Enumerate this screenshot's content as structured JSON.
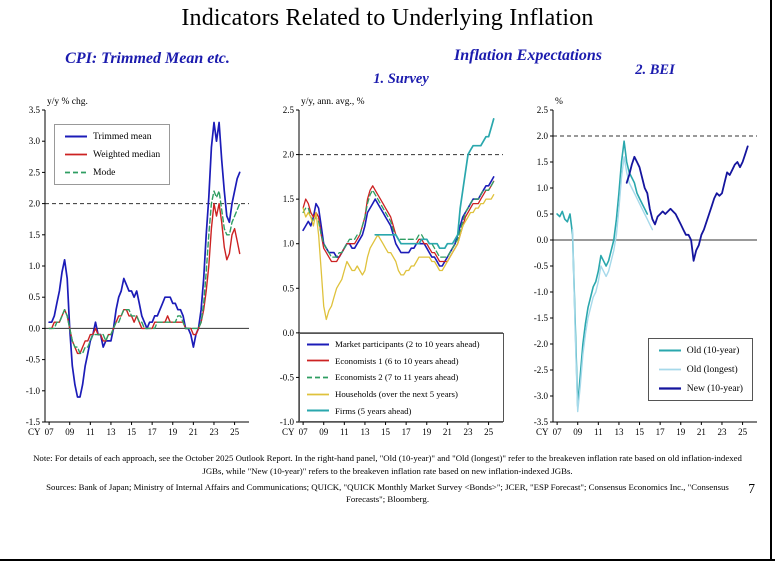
{
  "page": {
    "title": "Indicators Related to Underlying Inflation",
    "page_number": "7",
    "note": "Note: For details of each approach, see the October 2025 Outlook Report. In the right-hand panel, \"Old (10-year)\" and \"Old (longest)\" refer to the breakeven inflation rate based on old inflation-indexed JGBs, while \"New (10-year)\" refers to the breakeven inflation rate based on new inflation-indexed JGBs.",
    "sources": "Sources: Bank of Japan; Ministry of Internal Affairs and Communications; QUICK, \"QUICK Monthly Market Survey <Bonds>\"; JCER, \"ESP Forecast\"; Consensus Economics Inc., \"Consensus Forecasts\"; Bloomberg."
  },
  "headers": {
    "left_panel_title": "CPI: Trimmed Mean etc.",
    "right_group_title": "Inflation Expectations",
    "survey_subtitle": "1. Survey",
    "bei_subtitle": "2. BEI"
  },
  "colors": {
    "header_blue": "#1b1bae",
    "line_blue": "#1c1cb8",
    "line_red": "#cc2222",
    "line_green": "#2f9e62",
    "line_yellow": "#dfc23c",
    "line_teal": "#2aa7ad",
    "line_lightblue": "#a6d9ea",
    "line_navy": "#15159e"
  },
  "chart_data": [
    {
      "type": "line",
      "title": "CPI: Trimmed Mean etc.",
      "unit_label": "y/y % chg.",
      "x_prefix": "CY",
      "xlim": [
        2006.6,
        2026.4
      ],
      "ylim": [
        -1.5,
        3.5
      ],
      "ytick_step": 0.5,
      "xticks": [
        2007,
        2009,
        2011,
        2013,
        2015,
        2017,
        2019,
        2021,
        2023,
        2025
      ],
      "xtick_labels": [
        "07",
        "09",
        "11",
        "13",
        "15",
        "17",
        "19",
        "21",
        "23",
        "25"
      ],
      "refline": 2.0,
      "zero_line": true,
      "legend": {
        "pos": "top-left",
        "boxed": true
      },
      "series": [
        {
          "id": "trimmed-mean",
          "name": "Trimmed mean",
          "color": "#1c1cb8",
          "width": 1.7,
          "dash": null,
          "start": 2007.0,
          "step": 0.25,
          "values": [
            0.1,
            0.1,
            0.2,
            0.4,
            0.6,
            0.9,
            1.1,
            0.8,
            0.0,
            -0.6,
            -0.9,
            -1.1,
            -1.1,
            -0.9,
            -0.6,
            -0.4,
            -0.2,
            -0.1,
            0.1,
            -0.1,
            -0.1,
            -0.3,
            -0.2,
            -0.2,
            -0.2,
            0.0,
            0.3,
            0.5,
            0.6,
            0.8,
            0.7,
            0.6,
            0.6,
            0.5,
            0.6,
            0.4,
            0.2,
            0.1,
            0.0,
            0.1,
            0.1,
            0.2,
            0.2,
            0.3,
            0.4,
            0.5,
            0.5,
            0.5,
            0.4,
            0.4,
            0.3,
            0.3,
            0.2,
            0.0,
            0.0,
            -0.1,
            -0.3,
            -0.1,
            0.0,
            0.3,
            0.8,
            1.5,
            2.1,
            2.9,
            3.3,
            3.0,
            3.3,
            2.7,
            2.2,
            1.8,
            1.7,
            2.0,
            2.2,
            2.4,
            2.5
          ]
        },
        {
          "id": "weighted-median",
          "name": "Weighted median",
          "color": "#cc2222",
          "width": 1.4,
          "dash": null,
          "start": 2007.0,
          "step": 0.25,
          "values": [
            0.0,
            0.0,
            0.1,
            0.1,
            0.1,
            0.2,
            0.3,
            0.2,
            0.0,
            -0.2,
            -0.3,
            -0.4,
            -0.4,
            -0.3,
            -0.2,
            -0.2,
            -0.1,
            -0.1,
            0.0,
            -0.1,
            -0.1,
            -0.2,
            -0.2,
            -0.1,
            -0.1,
            0.0,
            0.1,
            0.2,
            0.2,
            0.3,
            0.3,
            0.2,
            0.2,
            0.1,
            0.2,
            0.1,
            0.0,
            0.0,
            0.0,
            0.0,
            0.0,
            0.1,
            0.1,
            0.1,
            0.1,
            0.1,
            0.2,
            0.1,
            0.1,
            0.1,
            0.1,
            0.1,
            0.1,
            0.0,
            0.0,
            0.0,
            -0.1,
            -0.1,
            0.0,
            0.1,
            0.3,
            0.6,
            1.0,
            1.6,
            2.0,
            1.8,
            2.0,
            1.7,
            1.3,
            1.1,
            1.2,
            1.5,
            1.6,
            1.4,
            1.2
          ]
        },
        {
          "id": "mode",
          "name": "Mode",
          "color": "#2f9e62",
          "width": 1.4,
          "dash": "5 3",
          "start": 2007.0,
          "step": 0.25,
          "values": [
            0.0,
            0.0,
            0.0,
            0.1,
            0.1,
            0.2,
            0.3,
            0.2,
            0.0,
            -0.2,
            -0.3,
            -0.3,
            -0.4,
            -0.4,
            -0.3,
            -0.3,
            -0.2,
            -0.1,
            -0.1,
            -0.1,
            -0.1,
            -0.1,
            -0.2,
            -0.1,
            -0.1,
            0.0,
            0.1,
            0.1,
            0.2,
            0.3,
            0.3,
            0.3,
            0.2,
            0.2,
            0.2,
            0.1,
            0.1,
            0.0,
            0.0,
            0.0,
            0.0,
            0.0,
            0.1,
            0.1,
            0.1,
            0.1,
            0.1,
            0.1,
            0.1,
            0.1,
            0.2,
            0.2,
            0.1,
            0.0,
            0.0,
            0.0,
            0.0,
            0.0,
            0.0,
            0.1,
            0.4,
            0.9,
            1.5,
            2.0,
            2.2,
            2.1,
            2.2,
            1.9,
            1.6,
            1.5,
            1.5,
            1.7,
            1.8,
            1.9,
            2.0
          ]
        }
      ]
    },
    {
      "type": "line",
      "title": "Inflation Expectations - 1. Survey",
      "unit_label": "y/y, ann. avg., %",
      "x_prefix": "CY",
      "xlim": [
        2006.6,
        2026.4
      ],
      "ylim": [
        -1.0,
        2.5
      ],
      "ytick_step": 0.5,
      "xticks": [
        2007,
        2009,
        2011,
        2013,
        2015,
        2017,
        2019,
        2021,
        2023,
        2025
      ],
      "xtick_labels": [
        "07",
        "09",
        "11",
        "13",
        "15",
        "17",
        "19",
        "21",
        "23",
        "25"
      ],
      "refline": 2.0,
      "zero_line": true,
      "legend": {
        "pos": "bottom",
        "boxed": true
      },
      "series": [
        {
          "id": "market-participants",
          "name": "Market participants (2 to 10 years ahead)",
          "color": "#1c1cb8",
          "width": 1.6,
          "dash": null,
          "start": 2007.0,
          "step": 0.25,
          "values": [
            1.15,
            1.2,
            1.25,
            1.2,
            1.3,
            1.45,
            1.4,
            1.2,
            1.0,
            0.95,
            0.9,
            0.9,
            0.9,
            0.85,
            0.85,
            0.9,
            0.95,
            1.0,
            1.0,
            0.95,
            0.95,
            1.0,
            1.05,
            1.1,
            1.2,
            1.35,
            1.4,
            1.45,
            1.5,
            1.45,
            1.4,
            1.35,
            1.3,
            1.25,
            1.2,
            1.1,
            1.0,
            0.95,
            0.9,
            0.9,
            0.9,
            0.9,
            0.95,
            0.95,
            1.0,
            1.0,
            1.0,
            1.0,
            0.95,
            0.9,
            0.85,
            0.85,
            0.8,
            0.75,
            0.75,
            0.8,
            0.85,
            0.9,
            0.95,
            1.0,
            1.1,
            1.2,
            1.3,
            1.35,
            1.4,
            1.45,
            1.5,
            1.5,
            1.5,
            1.55,
            1.6,
            1.65,
            1.65,
            1.7,
            1.75
          ]
        },
        {
          "id": "economists-1",
          "name": "Economists 1 (6 to 10 years ahead)",
          "color": "#cc2222",
          "width": 1.3,
          "dash": null,
          "start": 2007.0,
          "step": 0.25,
          "values": [
            1.4,
            1.5,
            1.45,
            1.35,
            1.3,
            1.35,
            1.3,
            1.1,
            0.95,
            0.9,
            0.85,
            0.8,
            0.8,
            0.8,
            0.85,
            0.9,
            0.95,
            1.0,
            1.0,
            1.0,
            1.0,
            1.05,
            1.1,
            1.2,
            1.3,
            1.5,
            1.6,
            1.65,
            1.6,
            1.55,
            1.5,
            1.45,
            1.4,
            1.35,
            1.3,
            1.2,
            1.1,
            1.05,
            1.0,
            1.0,
            1.0,
            1.0,
            1.0,
            1.0,
            1.0,
            1.05,
            1.05,
            1.0,
            1.0,
            0.95,
            0.9,
            0.9,
            0.85,
            0.8,
            0.8,
            0.8,
            0.8,
            0.85,
            0.9,
            0.95,
            1.0,
            1.1,
            1.2,
            1.3,
            1.35,
            1.4,
            1.45,
            1.45,
            1.45,
            1.5,
            1.55,
            1.6,
            1.6,
            1.65,
            1.7
          ]
        },
        {
          "id": "economists-2",
          "name": "Economists 2 (7 to 11 years ahead)",
          "color": "#2f9e62",
          "width": 1.3,
          "dash": "5 3",
          "start": 2007.0,
          "step": 0.25,
          "values": [
            1.35,
            1.4,
            1.4,
            1.3,
            1.25,
            1.3,
            1.25,
            1.1,
            1.0,
            0.95,
            0.9,
            0.85,
            0.85,
            0.85,
            0.9,
            0.9,
            0.95,
            1.0,
            1.05,
            1.05,
            1.05,
            1.1,
            1.1,
            1.2,
            1.3,
            1.45,
            1.55,
            1.6,
            1.55,
            1.5,
            1.45,
            1.4,
            1.35,
            1.3,
            1.25,
            1.15,
            1.1,
            1.05,
            1.05,
            1.05,
            1.05,
            1.05,
            1.05,
            1.05,
            1.05,
            1.1,
            1.1,
            1.05,
            1.05,
            1.0,
            1.0,
            0.95,
            0.9,
            0.85,
            0.85,
            0.85,
            0.85,
            0.9,
            0.95,
            1.0,
            1.05,
            1.15,
            1.25,
            1.35,
            1.4,
            1.45,
            1.5,
            1.5,
            1.5,
            1.55,
            1.6,
            1.6,
            1.6,
            1.65,
            1.7
          ]
        },
        {
          "id": "households",
          "name": "Households (over the next 5 years)",
          "color": "#dfc23c",
          "width": 1.3,
          "dash": null,
          "start": 2007.0,
          "step": 0.25,
          "values": [
            1.4,
            1.3,
            1.35,
            1.3,
            1.2,
            1.35,
            1.1,
            0.7,
            0.3,
            0.15,
            0.25,
            0.3,
            0.4,
            0.5,
            0.55,
            0.6,
            0.7,
            0.8,
            0.75,
            0.7,
            0.7,
            0.75,
            0.7,
            0.65,
            0.7,
            0.85,
            0.95,
            1.0,
            1.05,
            1.1,
            1.05,
            1.0,
            0.95,
            0.9,
            0.9,
            0.85,
            0.8,
            0.7,
            0.65,
            0.65,
            0.7,
            0.7,
            0.75,
            0.75,
            0.8,
            0.85,
            0.85,
            0.85,
            0.85,
            0.85,
            0.8,
            0.8,
            0.75,
            0.7,
            0.7,
            0.75,
            0.8,
            0.85,
            0.9,
            0.95,
            1.0,
            1.1,
            1.2,
            1.25,
            1.3,
            1.35,
            1.35,
            1.4,
            1.4,
            1.45,
            1.45,
            1.5,
            1.5,
            1.5,
            1.55
          ]
        },
        {
          "id": "firms",
          "name": "Firms (5 years ahead)",
          "color": "#2aa7ad",
          "width": 1.7,
          "dash": null,
          "start": 2014.0,
          "step": 0.25,
          "values": [
            1.1,
            1.1,
            1.1,
            1.1,
            1.1,
            1.1,
            1.1,
            1.1,
            1.1,
            1.05,
            1.0,
            1.0,
            1.0,
            1.0,
            1.0,
            1.0,
            1.0,
            1.0,
            1.05,
            1.05,
            1.05,
            1.0,
            1.0,
            1.0,
            1.0,
            0.95,
            0.95,
            0.95,
            1.0,
            1.0,
            1.0,
            1.05,
            1.1,
            1.4,
            1.6,
            1.8,
            2.0,
            2.05,
            2.1,
            2.1,
            2.1,
            2.1,
            2.15,
            2.2,
            2.2,
            2.3,
            2.4
          ]
        }
      ]
    },
    {
      "type": "line",
      "title": "Inflation Expectations - 2. BEI",
      "unit_label": "%",
      "x_prefix": "CY",
      "xlim": [
        2006.6,
        2026.4
      ],
      "ylim": [
        -3.5,
        2.5
      ],
      "ytick_step": 0.5,
      "xticks": [
        2007,
        2009,
        2011,
        2013,
        2015,
        2017,
        2019,
        2021,
        2023,
        2025
      ],
      "xtick_labels": [
        "07",
        "09",
        "11",
        "13",
        "15",
        "17",
        "19",
        "21",
        "23",
        "25"
      ],
      "refline": 2.0,
      "zero_line": true,
      "legend": {
        "pos": "bottom-right",
        "boxed": true
      },
      "series": [
        {
          "id": "old-10-year",
          "name": "Old (10-year)",
          "color": "#2aa7ad",
          "width": 1.6,
          "dash": null,
          "start": 2007.0,
          "step": 0.25,
          "values": [
            0.5,
            0.45,
            0.55,
            0.4,
            0.35,
            0.5,
            0.1,
            -1.6,
            -3.2,
            -2.6,
            -2.0,
            -1.6,
            -1.3,
            -1.1,
            -0.9,
            -0.8,
            -0.6,
            -0.3,
            -0.4,
            -0.5,
            -0.4,
            -0.2,
            0.0,
            0.4,
            0.9,
            1.5,
            1.9,
            1.5,
            1.3,
            1.2,
            1.1,
            0.9,
            0.8,
            0.7,
            0.6,
            0.5
          ]
        },
        {
          "id": "old-longest",
          "name": "Old (longest)",
          "color": "#a6d9ea",
          "width": 1.4,
          "dash": null,
          "start": 2008.5,
          "step": 0.25,
          "values": [
            0.2,
            -1.8,
            -3.3,
            -2.8,
            -2.2,
            -1.8,
            -1.5,
            -1.3,
            -1.1,
            -1.0,
            -0.8,
            -0.5,
            -0.6,
            -0.7,
            -0.6,
            -0.4,
            -0.2,
            0.1,
            0.6,
            1.2,
            1.6,
            1.3,
            1.1,
            1.0,
            0.9,
            0.8,
            0.7,
            0.6,
            0.5,
            0.4,
            0.3,
            0.2
          ]
        },
        {
          "id": "new-10-year",
          "name": "New (10-year)",
          "color": "#15159e",
          "width": 1.8,
          "dash": null,
          "start": 2013.75,
          "step": 0.25,
          "values": [
            1.1,
            1.25,
            1.45,
            1.6,
            1.5,
            1.4,
            1.2,
            1.0,
            0.9,
            0.6,
            0.4,
            0.3,
            0.45,
            0.5,
            0.55,
            0.5,
            0.55,
            0.6,
            0.55,
            0.5,
            0.4,
            0.3,
            0.2,
            0.1,
            0.1,
            0.0,
            -0.4,
            -0.2,
            -0.1,
            0.1,
            0.2,
            0.35,
            0.5,
            0.65,
            0.8,
            0.9,
            0.85,
            0.9,
            1.1,
            1.3,
            1.25,
            1.35,
            1.45,
            1.5,
            1.4,
            1.5,
            1.65,
            1.8
          ]
        }
      ]
    }
  ]
}
